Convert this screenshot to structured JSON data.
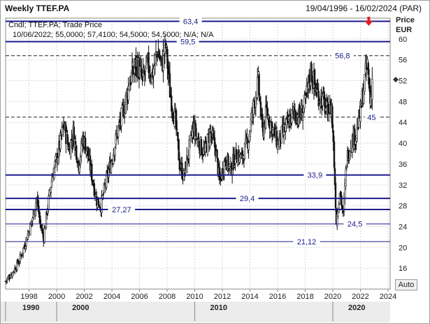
{
  "header": {
    "title": "Weekly TTEF.PA",
    "date_range": "19/04/1996 - 16/02/2024 (PAR)"
  },
  "info": {
    "line1": "Cndl; TTEF.PA; Trade Price",
    "line2": "10/06/2022; 55,0000; 57,4100; 54,5000; 54,5000; N/A; N/A"
  },
  "axis": {
    "y_title": "Price",
    "y_unit": "EUR",
    "auto_label": "Auto"
  },
  "chart_data": {
    "type": "candlestick",
    "x_range": [
      1996.3,
      2024.15
    ],
    "y_range": [
      12,
      64
    ],
    "y_ticks": [
      16,
      20,
      24,
      28,
      32,
      36,
      40,
      44,
      48,
      52,
      56,
      60
    ],
    "y_tick_labels": [
      "16",
      "20",
      "24",
      "28",
      "32",
      "36",
      "40",
      "44",
      "48",
      "52",
      "56",
      "60"
    ],
    "x_ticks": [
      1998,
      2000,
      2002,
      2004,
      2006,
      2008,
      2010,
      2012,
      2014,
      2016,
      2018,
      2020,
      2022,
      2024
    ],
    "x_tick_labels": [
      "1998",
      "2000",
      "2002",
      "2004",
      "2006",
      "2008",
      "2010",
      "2012",
      "2014",
      "2016",
      "2018",
      "2020",
      "2022",
      "2024"
    ],
    "decade_labels": [
      {
        "label": "1990",
        "x": 1996.3
      },
      {
        "label": "2000",
        "x": 2000
      },
      {
        "label": "2010",
        "x": 2010
      },
      {
        "label": "2020",
        "x": 2020
      }
    ],
    "horizontal_levels": [
      {
        "value": 63.4,
        "label": "63,4",
        "style": "solid-thick",
        "x_label": 2009.7
      },
      {
        "value": 59.5,
        "label": "59,5",
        "style": "solid-thick",
        "x_label": 2009.5
      },
      {
        "value": 56.8,
        "label": "56,8",
        "style": "dashed",
        "x_label": 2020.7
      },
      {
        "value": 45,
        "label": "45",
        "style": "dashed",
        "x_label": 2022.8
      },
      {
        "value": 33.9,
        "label": "33,9",
        "style": "solid-thick",
        "x_label": 2018.7
      },
      {
        "value": 29.4,
        "label": "29,4",
        "style": "solid-thick",
        "x_label": 2013.8
      },
      {
        "value": 27.27,
        "label": "27,27",
        "style": "solid-thick",
        "x_label": 2004.7
      },
      {
        "value": 24.5,
        "label": "24,5",
        "style": "solid-thin",
        "x_label": 2021.6
      },
      {
        "value": 21.12,
        "label": "21,12",
        "style": "solid-thin",
        "x_label": 2018.1
      }
    ],
    "last_price": 52.2,
    "signal_arrow": {
      "x": 2022.6,
      "direction": "down",
      "color": "#e02020"
    },
    "price_path": [
      [
        1996.3,
        13.5
      ],
      [
        1996.8,
        15.2
      ],
      [
        1997.3,
        17.5
      ],
      [
        1997.8,
        21.5
      ],
      [
        1998.2,
        25.0
      ],
      [
        1998.55,
        29.5
      ],
      [
        1998.8,
        24.5
      ],
      [
        1999.05,
        22.0
      ],
      [
        1999.3,
        27.0
      ],
      [
        1999.7,
        34.0
      ],
      [
        2000.1,
        38.0
      ],
      [
        2000.5,
        43.5
      ],
      [
        2000.9,
        39.0
      ],
      [
        2001.2,
        42.0
      ],
      [
        2001.6,
        36.0
      ],
      [
        2001.9,
        41.0
      ],
      [
        2002.2,
        38.5
      ],
      [
        2002.6,
        33.0
      ],
      [
        2002.9,
        29.0
      ],
      [
        2003.2,
        28.0
      ],
      [
        2003.6,
        33.0
      ],
      [
        2004.0,
        37.0
      ],
      [
        2004.4,
        42.0
      ],
      [
        2004.8,
        46.0
      ],
      [
        2005.3,
        52.0
      ],
      [
        2005.8,
        55.5
      ],
      [
        2006.2,
        52.0
      ],
      [
        2006.6,
        55.0
      ],
      [
        2006.9,
        53.0
      ],
      [
        2007.3,
        58.0
      ],
      [
        2007.6,
        55.0
      ],
      [
        2007.9,
        58.5
      ],
      [
        2008.2,
        50.0
      ],
      [
        2008.6,
        44.0
      ],
      [
        2008.9,
        36.0
      ],
      [
        2009.2,
        33.5
      ],
      [
        2009.6,
        39.0
      ],
      [
        2009.9,
        43.0
      ],
      [
        2010.3,
        40.0
      ],
      [
        2010.7,
        38.0
      ],
      [
        2011.1,
        42.0
      ],
      [
        2011.5,
        39.0
      ],
      [
        2011.8,
        32.5
      ],
      [
        2012.2,
        37.0
      ],
      [
        2012.6,
        35.0
      ],
      [
        2013.0,
        38.0
      ],
      [
        2013.4,
        37.0
      ],
      [
        2013.9,
        41.0
      ],
      [
        2014.3,
        48.0
      ],
      [
        2014.6,
        51.5
      ],
      [
        2014.9,
        42.0
      ],
      [
        2015.2,
        46.0
      ],
      [
        2015.6,
        43.0
      ],
      [
        2016.0,
        40.0
      ],
      [
        2016.4,
        42.0
      ],
      [
        2016.8,
        44.0
      ],
      [
        2017.2,
        46.0
      ],
      [
        2017.6,
        45.0
      ],
      [
        2018.0,
        47.5
      ],
      [
        2018.4,
        54.0
      ],
      [
        2018.8,
        50.0
      ],
      [
        2019.2,
        48.5
      ],
      [
        2019.6,
        46.0
      ],
      [
        2019.9,
        47.0
      ],
      [
        2020.1,
        36.0
      ],
      [
        2020.25,
        25.0
      ],
      [
        2020.5,
        31.0
      ],
      [
        2020.75,
        26.0
      ],
      [
        2021.0,
        37.0
      ],
      [
        2021.3,
        40.0
      ],
      [
        2021.7,
        42.0
      ],
      [
        2022.0,
        46.0
      ],
      [
        2022.3,
        52.0
      ],
      [
        2022.5,
        55.0
      ],
      [
        2022.7,
        48.0
      ],
      [
        2022.85,
        52.2
      ]
    ]
  }
}
